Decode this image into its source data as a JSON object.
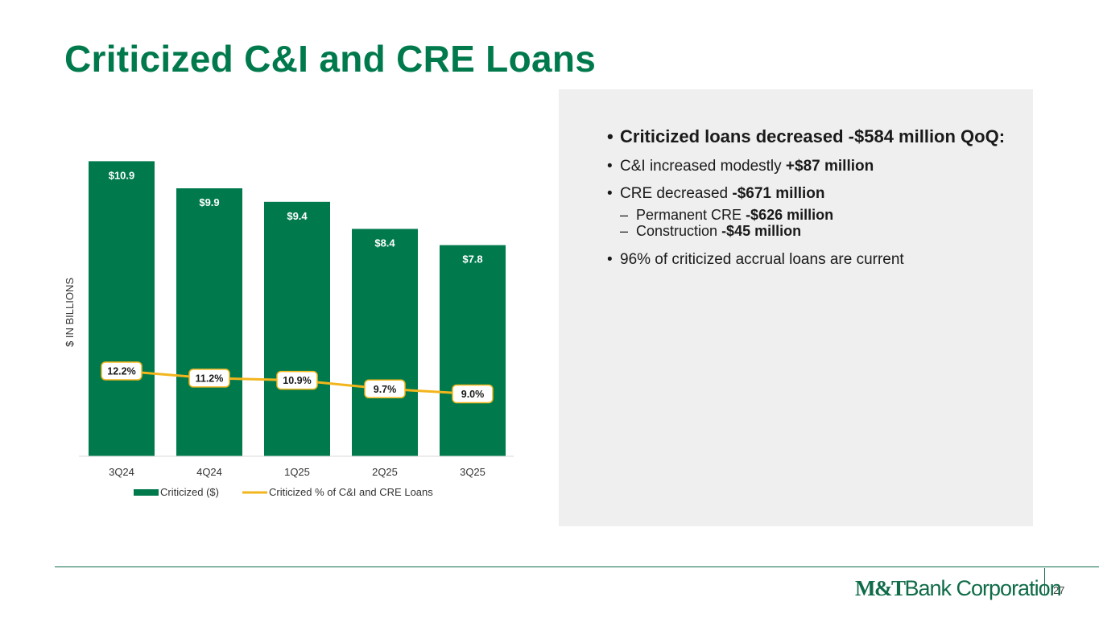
{
  "page": {
    "title": "Criticized C&I and CRE Loans",
    "page_number": "27",
    "logo": {
      "mark": "M&T",
      "text": "Bank Corporation"
    }
  },
  "colors": {
    "brand_green": "#007a4d",
    "line_gold": "#f2b51c",
    "panel_gray": "#efeff0"
  },
  "chart_data": {
    "type": "bar",
    "categories": [
      "3Q24",
      "4Q24",
      "1Q25",
      "2Q25",
      "3Q25"
    ],
    "ylabel": "$ IN BILLIONS",
    "series": [
      {
        "name": "Criticized ($)",
        "type": "bar",
        "values": [
          10.9,
          9.9,
          9.4,
          8.4,
          7.8
        ],
        "labels": [
          "$10.9",
          "$9.9",
          "$9.4",
          "$8.4",
          "$7.8"
        ]
      },
      {
        "name": "Criticized % of C&I and CRE Loans",
        "type": "line",
        "values": [
          12.2,
          11.2,
          10.9,
          9.7,
          9.0
        ],
        "labels": [
          "12.2%",
          "11.2%",
          "10.9%",
          "9.7%",
          "9.0%"
        ]
      }
    ],
    "ylim": [
      0,
      11.0
    ],
    "legend_position": "bottom"
  },
  "panel": {
    "lead": "Criticized loans decreased -$584 million QoQ:",
    "items": [
      {
        "text": "C&I increased modestly ",
        "bold": "+$87 million"
      },
      {
        "text": "CRE decreased ",
        "bold": "-$671 million"
      },
      {
        "text": "Permanent CRE ",
        "bold": "-$626 million"
      },
      {
        "text": "Construction ",
        "bold": "-$45 million"
      },
      {
        "text": "96% of criticized accrual loans are current"
      }
    ]
  },
  "glyphs": {
    "bullet": "•",
    "dash": "–"
  }
}
